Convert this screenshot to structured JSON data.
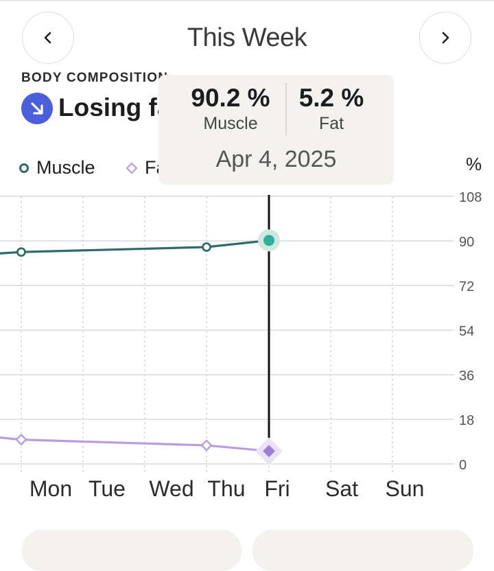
{
  "header": {
    "title": "This Week",
    "prev_icon": "chevron-left-icon",
    "next_icon": "chevron-right-icon"
  },
  "section": {
    "label": "BODY COMPOSITION",
    "trend_text": "Losing fat",
    "trend_icon": "arrow-down-right-icon",
    "trend_color": "#4a5fd9"
  },
  "legend": {
    "muscle": "Muscle",
    "fat": "Fat"
  },
  "tooltip": {
    "muscle_value": "90.2 %",
    "muscle_label": "Muscle",
    "fat_value": "5.2 %",
    "fat_label": "Fat",
    "date": "Apr 4, 2025"
  },
  "chart_data": {
    "type": "line",
    "unit_label": "%",
    "ylim": [
      0,
      108
    ],
    "y_ticks": [
      "108",
      "90",
      "72",
      "54",
      "36",
      "18",
      "0"
    ],
    "categories": [
      "Mon",
      "Tue",
      "Wed",
      "Thu",
      "Fri",
      "Sat",
      "Sun"
    ],
    "series": [
      {
        "name": "Muscle",
        "color": "#2f6b6b",
        "values": [
          85.5,
          null,
          null,
          87.5,
          90.2,
          null,
          null
        ]
      },
      {
        "name": "Fat",
        "color": "#b79de0",
        "values": [
          9.8,
          null,
          null,
          7.5,
          5.2,
          null,
          null
        ]
      }
    ],
    "selected_category": "Fri",
    "grid": true
  },
  "cards": [
    {},
    {}
  ]
}
